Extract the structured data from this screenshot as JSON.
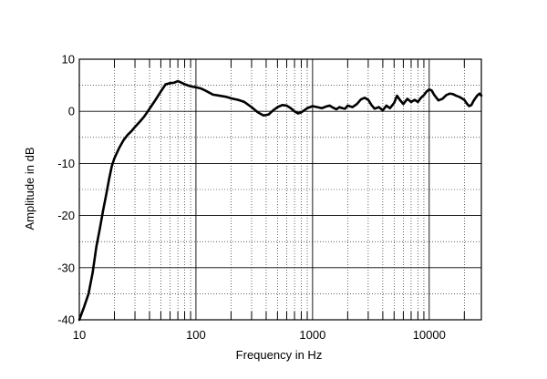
{
  "chart_data": {
    "type": "line",
    "title": "",
    "xlabel": "Frequency in Hz",
    "ylabel": "Amplitude in dB",
    "x_scale": "log",
    "xlim": [
      10,
      28000
    ],
    "ylim": [
      -40,
      10
    ],
    "x_ticks": [
      10,
      100,
      1000,
      10000
    ],
    "x_tick_labels": [
      "10",
      "100",
      "1000",
      "10000"
    ],
    "y_ticks": [
      10,
      0,
      -10,
      -20,
      -30,
      -40
    ],
    "y_tick_labels": [
      "10",
      "0",
      "-10",
      "-20",
      "-30",
      "-40"
    ],
    "grid": true,
    "legend": "none",
    "colors": {
      "line": "#000000",
      "grid": "#000000",
      "background": "#ffffff"
    },
    "series": [
      {
        "x": [
          10,
          11,
          12,
          13,
          14,
          15,
          16,
          17,
          18,
          19,
          20,
          22,
          24,
          26,
          28,
          30,
          33,
          36,
          40,
          45,
          50,
          55,
          60,
          65,
          70,
          75,
          80,
          90,
          100,
          110,
          120,
          140,
          160,
          180,
          200,
          230,
          260,
          300,
          340,
          380,
          420,
          460,
          500,
          550,
          600,
          650,
          700,
          750,
          800,
          900,
          1000,
          1100,
          1200,
          1300,
          1400,
          1500,
          1600,
          1700,
          1800,
          1900,
          2000,
          2200,
          2400,
          2600,
          2800,
          3000,
          3200,
          3400,
          3700,
          4000,
          4300,
          4600,
          5000,
          5300,
          5600,
          6000,
          6500,
          7000,
          7500,
          8000,
          8500,
          9000,
          9500,
          10000,
          10500,
          11000,
          12000,
          13000,
          14000,
          15000,
          16000,
          17000,
          18000,
          19000,
          20000,
          21000,
          22000,
          23000,
          24000,
          25000,
          26000,
          27000,
          28000
        ],
        "y": [
          -40,
          -37.5,
          -35,
          -31,
          -26,
          -22.5,
          -19,
          -16,
          -13,
          -10.5,
          -9,
          -7,
          -5.5,
          -4.5,
          -3.8,
          -3,
          -2,
          -1,
          0.5,
          2.2,
          3.8,
          5.2,
          5.4,
          5.5,
          5.8,
          5.5,
          5.2,
          4.8,
          4.6,
          4.4,
          4,
          3.2,
          3,
          2.8,
          2.5,
          2.2,
          1.8,
          0.8,
          -0.2,
          -0.8,
          -0.6,
          0.2,
          0.8,
          1.2,
          1.1,
          0.6,
          0,
          -0.4,
          -0.2,
          0.6,
          1,
          0.8,
          0.6,
          0.9,
          1.1,
          0.7,
          0.4,
          0.8,
          0.6,
          0.5,
          1.1,
          0.8,
          1.4,
          2.3,
          2.6,
          2.2,
          1.2,
          0.5,
          0.8,
          0.2,
          1.1,
          0.6,
          1.6,
          3.0,
          2.2,
          1.4,
          2.4,
          1.8,
          2.2,
          1.8,
          2.6,
          3.1,
          3.8,
          4.2,
          4.0,
          3.2,
          2.1,
          2.4,
          3.1,
          3.4,
          3.3,
          3.0,
          2.8,
          2.5,
          2.2,
          1.5,
          1.0,
          1.2,
          2.0,
          2.6,
          3.1,
          3.4,
          3.0
        ]
      }
    ]
  }
}
